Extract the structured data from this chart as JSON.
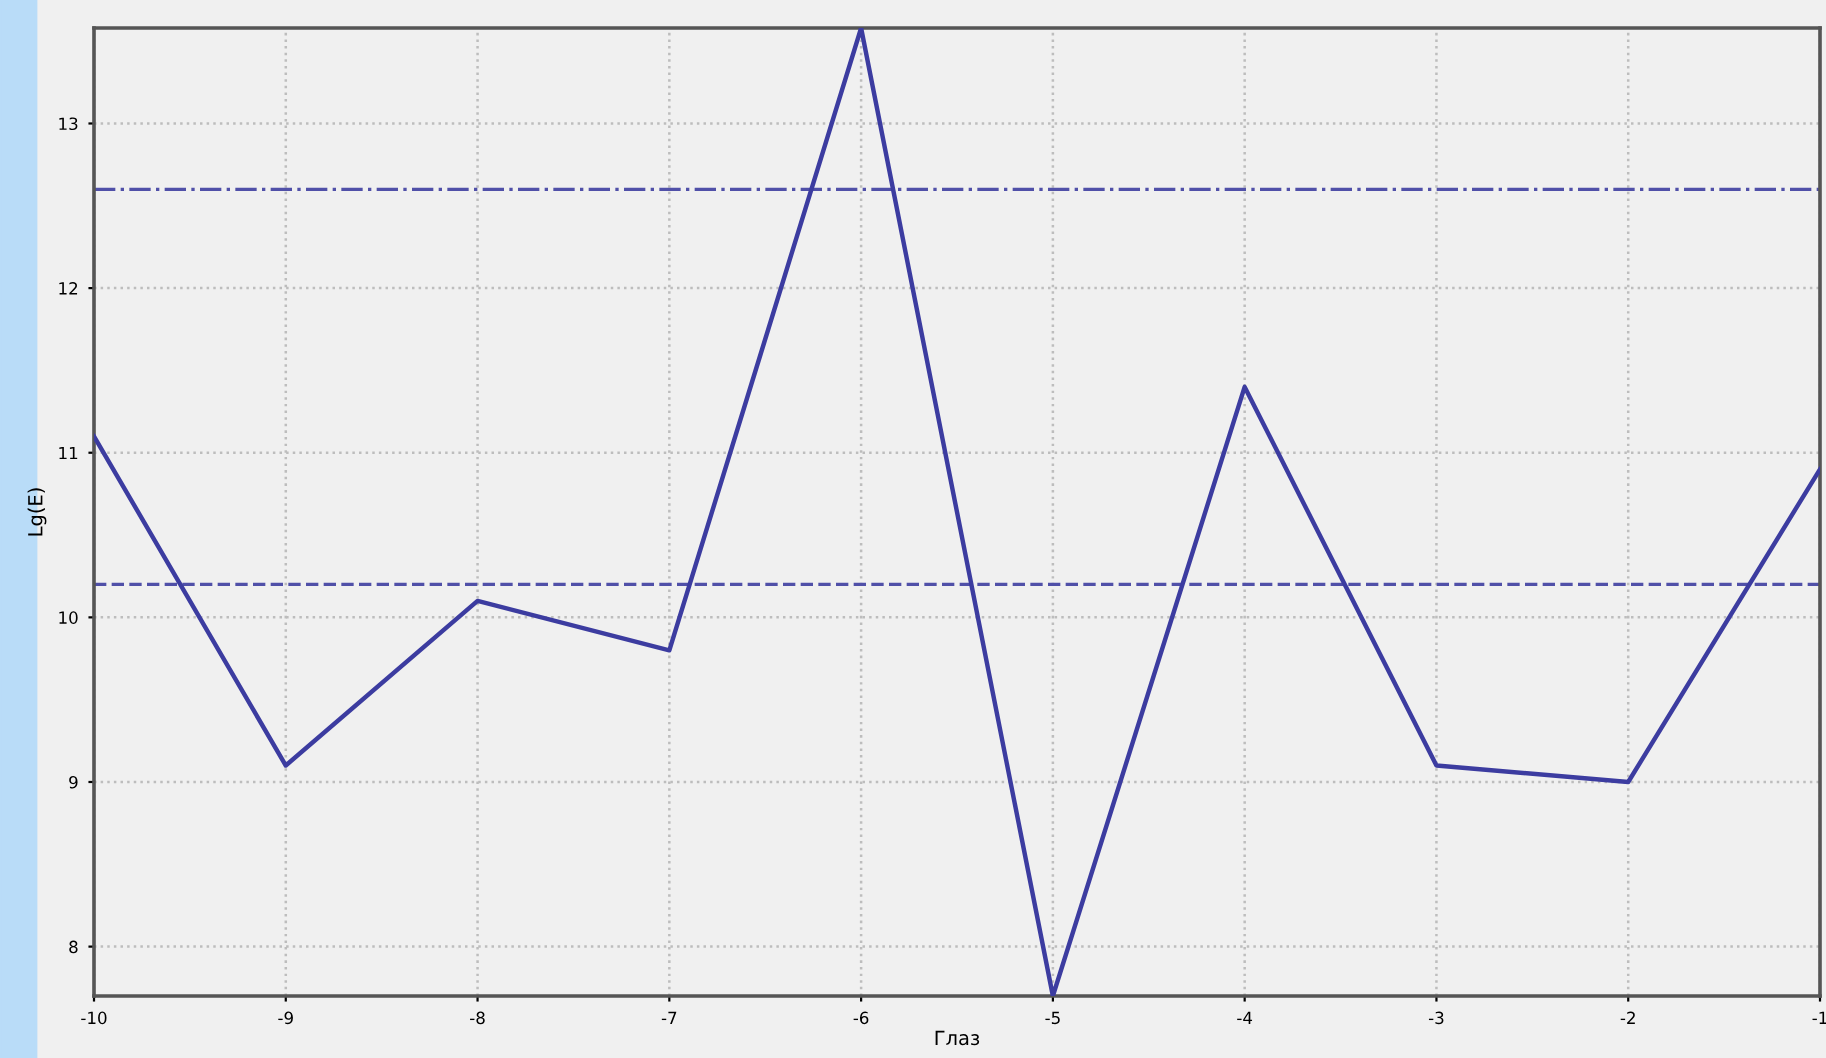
{
  "chart_data": {
    "type": "line",
    "xlabel": "Глаз",
    "ylabel": "Lg(E)",
    "x": [
      -10,
      -9,
      -8,
      -7,
      -6,
      -5,
      -4,
      -3,
      -2,
      -1
    ],
    "series": [
      {
        "color": "#3c3ca0",
        "values": [
          11.1,
          9.1,
          10.1,
          9.8,
          13.58,
          7.7,
          11.4,
          9.1,
          9.0,
          10.9
        ]
      }
    ],
    "xlim": [
      -10,
      -1
    ],
    "xticks": [
      -10,
      -9,
      -8,
      -7,
      -6,
      -5,
      -4,
      -3,
      -2,
      -1
    ],
    "ylim": [
      7.7,
      13.58
    ],
    "yticks": [
      8,
      9,
      10,
      11,
      12,
      13
    ],
    "ref_lines": [
      {
        "axis": "y",
        "value": 12.6,
        "color": "#5050a8",
        "line_style": "dashdot"
      },
      {
        "axis": "y",
        "value": 10.2,
        "color": "#5050a8",
        "line_style": "dashed"
      }
    ],
    "grid": true,
    "marker": "none",
    "line_style": "solid"
  }
}
